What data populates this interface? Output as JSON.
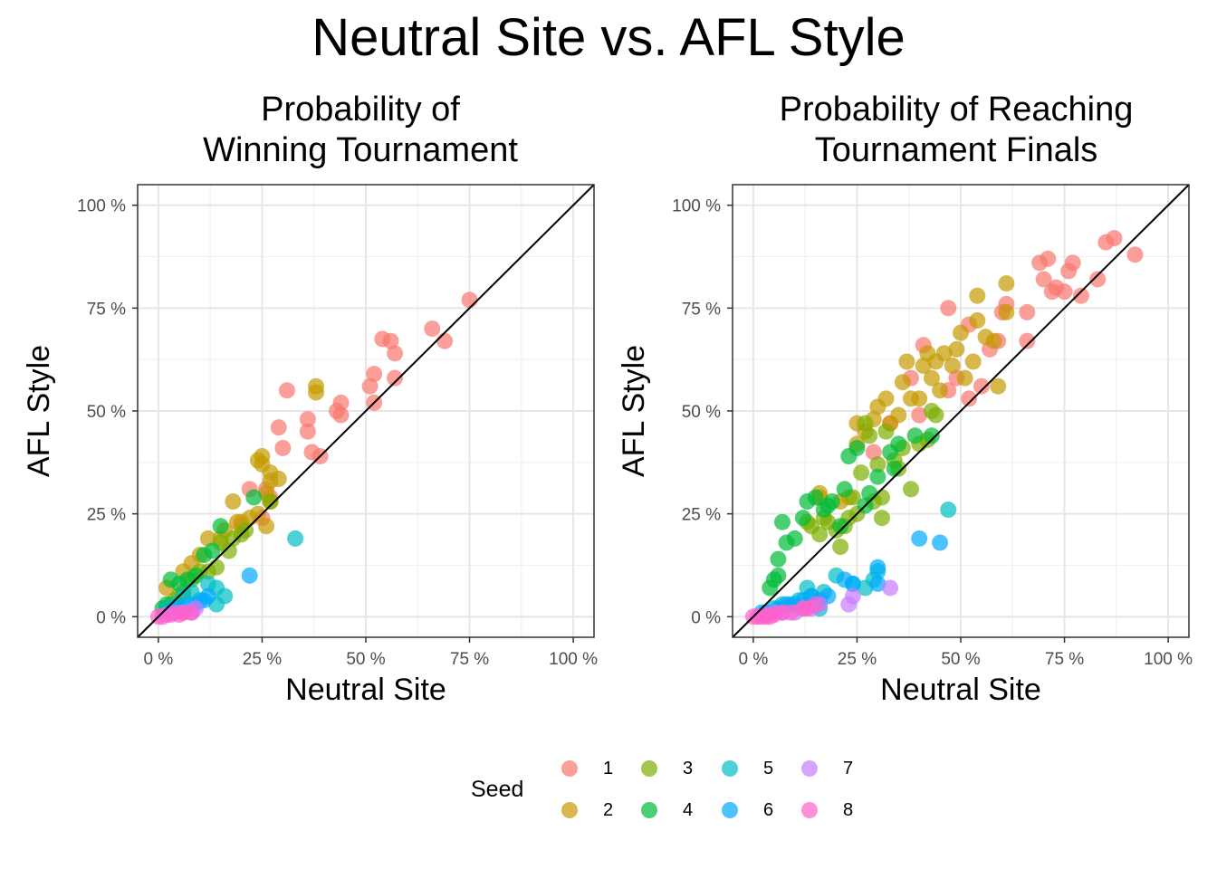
{
  "title": "Neutral Site vs. AFL Style",
  "legend": {
    "title": "Seed",
    "items": [
      {
        "label": "1",
        "color": "#F8766D"
      },
      {
        "label": "2",
        "color": "#C49A00"
      },
      {
        "label": "3",
        "color": "#7CAE00"
      },
      {
        "label": "4",
        "color": "#00BA38"
      },
      {
        "label": "5",
        "color": "#00BFC4"
      },
      {
        "label": "6",
        "color": "#00A9FF"
      },
      {
        "label": "7",
        "color": "#C77CFF"
      },
      {
        "label": "8",
        "color": "#FF61CC"
      }
    ]
  },
  "chart_data": [
    {
      "type": "scatter",
      "title_lines": [
        "Probability of",
        "Winning Tournament"
      ],
      "xlabel": "Neutral Site",
      "ylabel": "AFL Style",
      "xlim": [
        -0.05,
        1.05
      ],
      "ylim": [
        -0.05,
        1.05
      ],
      "ticks": [
        0,
        0.25,
        0.5,
        0.75,
        1.0
      ],
      "tick_labels": [
        "0 %",
        "25 %",
        "50 %",
        "75 %",
        "100 %"
      ],
      "reference_line": "y = x",
      "grid": true,
      "points": [
        [
          0.75,
          0.77,
          1
        ],
        [
          0.69,
          0.67,
          1
        ],
        [
          0.66,
          0.7,
          1
        ],
        [
          0.57,
          0.58,
          1
        ],
        [
          0.57,
          0.64,
          1
        ],
        [
          0.56,
          0.67,
          1
        ],
        [
          0.54,
          0.675,
          1
        ],
        [
          0.52,
          0.59,
          1
        ],
        [
          0.52,
          0.52,
          1
        ],
        [
          0.51,
          0.56,
          1
        ],
        [
          0.44,
          0.52,
          1
        ],
        [
          0.44,
          0.49,
          1
        ],
        [
          0.43,
          0.5,
          1
        ],
        [
          0.39,
          0.39,
          1
        ],
        [
          0.37,
          0.4,
          1
        ],
        [
          0.36,
          0.45,
          1
        ],
        [
          0.36,
          0.48,
          1
        ],
        [
          0.31,
          0.55,
          1
        ],
        [
          0.29,
          0.46,
          1
        ],
        [
          0.3,
          0.41,
          1
        ],
        [
          0.27,
          0.29,
          1
        ],
        [
          0.26,
          0.31,
          1
        ],
        [
          0.22,
          0.31,
          1
        ],
        [
          0.25,
          0.24,
          1
        ],
        [
          0.2,
          0.22,
          1
        ],
        [
          0.38,
          0.56,
          2
        ],
        [
          0.38,
          0.545,
          2
        ],
        [
          0.25,
          0.39,
          2
        ],
        [
          0.25,
          0.37,
          2
        ],
        [
          0.24,
          0.38,
          2
        ],
        [
          0.27,
          0.35,
          2
        ],
        [
          0.29,
          0.335,
          2
        ],
        [
          0.27,
          0.33,
          2
        ],
        [
          0.26,
          0.3,
          2
        ],
        [
          0.27,
          0.28,
          2
        ],
        [
          0.26,
          0.22,
          2
        ],
        [
          0.24,
          0.25,
          2
        ],
        [
          0.22,
          0.24,
          2
        ],
        [
          0.2,
          0.23,
          2
        ],
        [
          0.19,
          0.23,
          2
        ],
        [
          0.18,
          0.28,
          2
        ],
        [
          0.16,
          0.21,
          2
        ],
        [
          0.15,
          0.19,
          2
        ],
        [
          0.12,
          0.19,
          2
        ],
        [
          0.1,
          0.15,
          2
        ],
        [
          0.08,
          0.13,
          2
        ],
        [
          0.06,
          0.11,
          2
        ],
        [
          0.02,
          0.07,
          2
        ],
        [
          0.27,
          0.28,
          3
        ],
        [
          0.21,
          0.21,
          3
        ],
        [
          0.2,
          0.2,
          3
        ],
        [
          0.18,
          0.19,
          3
        ],
        [
          0.17,
          0.16,
          3
        ],
        [
          0.15,
          0.18,
          3
        ],
        [
          0.14,
          0.12,
          3
        ],
        [
          0.12,
          0.11,
          3
        ],
        [
          0.1,
          0.11,
          3
        ],
        [
          0.08,
          0.09,
          3
        ],
        [
          0.06,
          0.06,
          3
        ],
        [
          0.05,
          0.05,
          3
        ],
        [
          0.04,
          0.04,
          3
        ],
        [
          0.03,
          0.03,
          3
        ],
        [
          0.02,
          0.02,
          3
        ],
        [
          0.23,
          0.29,
          4
        ],
        [
          0.15,
          0.22,
          4
        ],
        [
          0.13,
          0.16,
          4
        ],
        [
          0.11,
          0.15,
          4
        ],
        [
          0.09,
          0.1,
          4
        ],
        [
          0.07,
          0.09,
          4
        ],
        [
          0.05,
          0.08,
          4
        ],
        [
          0.03,
          0.09,
          4
        ],
        [
          0.02,
          0.03,
          4
        ],
        [
          0.01,
          0.02,
          4
        ],
        [
          0.33,
          0.19,
          5
        ],
        [
          0.16,
          0.05,
          5
        ],
        [
          0.14,
          0.07,
          5
        ],
        [
          0.14,
          0.03,
          5
        ],
        [
          0.12,
          0.08,
          5
        ],
        [
          0.1,
          0.04,
          5
        ],
        [
          0.08,
          0.06,
          5
        ],
        [
          0.06,
          0.05,
          5
        ],
        [
          0.04,
          0.03,
          5
        ],
        [
          0.02,
          0.02,
          5
        ],
        [
          0.22,
          0.1,
          6
        ],
        [
          0.12,
          0.05,
          6
        ],
        [
          0.11,
          0.04,
          6
        ],
        [
          0.09,
          0.03,
          6
        ],
        [
          0.07,
          0.03,
          6
        ],
        [
          0.05,
          0.02,
          6
        ],
        [
          0.03,
          0.01,
          6
        ],
        [
          0.09,
          0.02,
          7
        ],
        [
          0.08,
          0.01,
          7
        ],
        [
          0.06,
          0.01,
          7
        ],
        [
          0.04,
          0.01,
          7
        ],
        [
          0.02,
          0.005,
          7
        ],
        [
          0.08,
          0.01,
          8
        ],
        [
          0.06,
          0.01,
          8
        ],
        [
          0.05,
          0.005,
          8
        ],
        [
          0.03,
          0.005,
          8
        ],
        [
          0.01,
          0.0,
          8
        ],
        [
          0.0,
          0.0,
          8
        ]
      ]
    },
    {
      "type": "scatter",
      "title_lines": [
        "Probability of Reaching",
        "Tournament Finals"
      ],
      "xlabel": "Neutral Site",
      "ylabel": "AFL Style",
      "xlim": [
        -0.05,
        1.05
      ],
      "ylim": [
        -0.05,
        1.05
      ],
      "ticks": [
        0,
        0.25,
        0.5,
        0.75,
        1.0
      ],
      "tick_labels": [
        "0 %",
        "25 %",
        "50 %",
        "75 %",
        "100 %"
      ],
      "reference_line": "y = x",
      "grid": true,
      "points": [
        [
          0.92,
          0.88,
          1
        ],
        [
          0.87,
          0.92,
          1
        ],
        [
          0.85,
          0.91,
          1
        ],
        [
          0.83,
          0.82,
          1
        ],
        [
          0.79,
          0.78,
          1
        ],
        [
          0.77,
          0.86,
          1
        ],
        [
          0.76,
          0.84,
          1
        ],
        [
          0.75,
          0.79,
          1
        ],
        [
          0.73,
          0.8,
          1
        ],
        [
          0.72,
          0.79,
          1
        ],
        [
          0.71,
          0.87,
          1
        ],
        [
          0.7,
          0.82,
          1
        ],
        [
          0.69,
          0.86,
          1
        ],
        [
          0.66,
          0.74,
          1
        ],
        [
          0.66,
          0.67,
          1
        ],
        [
          0.61,
          0.76,
          1
        ],
        [
          0.6,
          0.74,
          1
        ],
        [
          0.59,
          0.67,
          1
        ],
        [
          0.57,
          0.65,
          1
        ],
        [
          0.55,
          0.56,
          1
        ],
        [
          0.52,
          0.71,
          1
        ],
        [
          0.52,
          0.53,
          1
        ],
        [
          0.49,
          0.58,
          1
        ],
        [
          0.47,
          0.75,
          1
        ],
        [
          0.47,
          0.55,
          1
        ],
        [
          0.41,
          0.66,
          1
        ],
        [
          0.4,
          0.49,
          1
        ],
        [
          0.38,
          0.58,
          1
        ],
        [
          0.33,
          0.47,
          1
        ],
        [
          0.29,
          0.4,
          1
        ],
        [
          0.61,
          0.81,
          2
        ],
        [
          0.61,
          0.74,
          2
        ],
        [
          0.59,
          0.56,
          2
        ],
        [
          0.58,
          0.67,
          2
        ],
        [
          0.56,
          0.68,
          2
        ],
        [
          0.54,
          0.78,
          2
        ],
        [
          0.54,
          0.72,
          2
        ],
        [
          0.53,
          0.62,
          2
        ],
        [
          0.51,
          0.58,
          2
        ],
        [
          0.5,
          0.69,
          2
        ],
        [
          0.49,
          0.65,
          2
        ],
        [
          0.48,
          0.61,
          2
        ],
        [
          0.46,
          0.64,
          2
        ],
        [
          0.45,
          0.55,
          2
        ],
        [
          0.44,
          0.62,
          2
        ],
        [
          0.43,
          0.58,
          2
        ],
        [
          0.42,
          0.64,
          2
        ],
        [
          0.41,
          0.61,
          2
        ],
        [
          0.4,
          0.53,
          2
        ],
        [
          0.38,
          0.53,
          2
        ],
        [
          0.37,
          0.62,
          2
        ],
        [
          0.36,
          0.57,
          2
        ],
        [
          0.35,
          0.49,
          2
        ],
        [
          0.33,
          0.47,
          2
        ],
        [
          0.32,
          0.53,
          2
        ],
        [
          0.3,
          0.51,
          2
        ],
        [
          0.29,
          0.48,
          2
        ],
        [
          0.27,
          0.45,
          2
        ],
        [
          0.25,
          0.47,
          2
        ],
        [
          0.25,
          0.42,
          2
        ],
        [
          0.23,
          0.29,
          2
        ],
        [
          0.21,
          0.28,
          2
        ],
        [
          0.16,
          0.3,
          2
        ],
        [
          0.16,
          0.29,
          2
        ],
        [
          0.44,
          0.49,
          3
        ],
        [
          0.43,
          0.5,
          3
        ],
        [
          0.42,
          0.43,
          3
        ],
        [
          0.4,
          0.42,
          3
        ],
        [
          0.38,
          0.31,
          3
        ],
        [
          0.36,
          0.41,
          3
        ],
        [
          0.35,
          0.36,
          3
        ],
        [
          0.34,
          0.38,
          3
        ],
        [
          0.32,
          0.45,
          3
        ],
        [
          0.31,
          0.29,
          3
        ],
        [
          0.31,
          0.24,
          3
        ],
        [
          0.3,
          0.37,
          3
        ],
        [
          0.29,
          0.28,
          3
        ],
        [
          0.28,
          0.44,
          3
        ],
        [
          0.27,
          0.47,
          3
        ],
        [
          0.26,
          0.35,
          3
        ],
        [
          0.25,
          0.25,
          3
        ],
        [
          0.24,
          0.29,
          3
        ],
        [
          0.23,
          0.24,
          3
        ],
        [
          0.22,
          0.22,
          3
        ],
        [
          0.21,
          0.17,
          3
        ],
        [
          0.2,
          0.21,
          3
        ],
        [
          0.18,
          0.23,
          3
        ],
        [
          0.17,
          0.24,
          3
        ],
        [
          0.16,
          0.2,
          3
        ],
        [
          0.14,
          0.22,
          3
        ],
        [
          0.13,
          0.23,
          3
        ],
        [
          0.43,
          0.44,
          4
        ],
        [
          0.39,
          0.44,
          4
        ],
        [
          0.35,
          0.42,
          4
        ],
        [
          0.34,
          0.36,
          4
        ],
        [
          0.33,
          0.4,
          4
        ],
        [
          0.3,
          0.34,
          4
        ],
        [
          0.28,
          0.3,
          4
        ],
        [
          0.27,
          0.27,
          4
        ],
        [
          0.25,
          0.41,
          4
        ],
        [
          0.23,
          0.39,
          4
        ],
        [
          0.22,
          0.31,
          4
        ],
        [
          0.21,
          0.22,
          4
        ],
        [
          0.19,
          0.28,
          4
        ],
        [
          0.18,
          0.27,
          4
        ],
        [
          0.17,
          0.26,
          4
        ],
        [
          0.15,
          0.29,
          4
        ],
        [
          0.13,
          0.28,
          4
        ],
        [
          0.12,
          0.24,
          4
        ],
        [
          0.1,
          0.19,
          4
        ],
        [
          0.08,
          0.18,
          4
        ],
        [
          0.07,
          0.23,
          4
        ],
        [
          0.06,
          0.14,
          4
        ],
        [
          0.06,
          0.1,
          4
        ],
        [
          0.05,
          0.09,
          4
        ],
        [
          0.04,
          0.07,
          4
        ],
        [
          0.47,
          0.26,
          5
        ],
        [
          0.3,
          0.11,
          5
        ],
        [
          0.29,
          0.09,
          5
        ],
        [
          0.27,
          0.07,
          5
        ],
        [
          0.24,
          0.08,
          5
        ],
        [
          0.2,
          0.1,
          5
        ],
        [
          0.17,
          0.06,
          5
        ],
        [
          0.16,
          0.02,
          5
        ],
        [
          0.14,
          0.05,
          5
        ],
        [
          0.13,
          0.07,
          5
        ],
        [
          0.11,
          0.04,
          5
        ],
        [
          0.09,
          0.03,
          5
        ],
        [
          0.07,
          0.03,
          5
        ],
        [
          0.05,
          0.02,
          5
        ],
        [
          0.03,
          0.01,
          5
        ],
        [
          0.45,
          0.18,
          6
        ],
        [
          0.4,
          0.19,
          6
        ],
        [
          0.3,
          0.12,
          6
        ],
        [
          0.3,
          0.08,
          6
        ],
        [
          0.24,
          0.08,
          6
        ],
        [
          0.22,
          0.09,
          6
        ],
        [
          0.18,
          0.05,
          6
        ],
        [
          0.16,
          0.04,
          6
        ],
        [
          0.14,
          0.05,
          6
        ],
        [
          0.12,
          0.04,
          6
        ],
        [
          0.1,
          0.03,
          6
        ],
        [
          0.08,
          0.03,
          6
        ],
        [
          0.06,
          0.02,
          6
        ],
        [
          0.04,
          0.01,
          6
        ],
        [
          0.02,
          0.01,
          6
        ],
        [
          0.33,
          0.07,
          7
        ],
        [
          0.24,
          0.05,
          7
        ],
        [
          0.23,
          0.03,
          7
        ],
        [
          0.16,
          0.03,
          7
        ],
        [
          0.14,
          0.02,
          7
        ],
        [
          0.12,
          0.02,
          7
        ],
        [
          0.1,
          0.01,
          7
        ],
        [
          0.07,
          0.01,
          7
        ],
        [
          0.05,
          0.01,
          7
        ],
        [
          0.03,
          0.005,
          7
        ],
        [
          0.15,
          0.03,
          8
        ],
        [
          0.13,
          0.02,
          8
        ],
        [
          0.12,
          0.02,
          8
        ],
        [
          0.09,
          0.01,
          8
        ],
        [
          0.07,
          0.01,
          8
        ],
        [
          0.05,
          0.005,
          8
        ],
        [
          0.04,
          0.0,
          8
        ],
        [
          0.03,
          0.0,
          8
        ],
        [
          0.02,
          0.0,
          8
        ],
        [
          0.01,
          0.0,
          8
        ],
        [
          0.0,
          0.0,
          8
        ]
      ]
    }
  ]
}
